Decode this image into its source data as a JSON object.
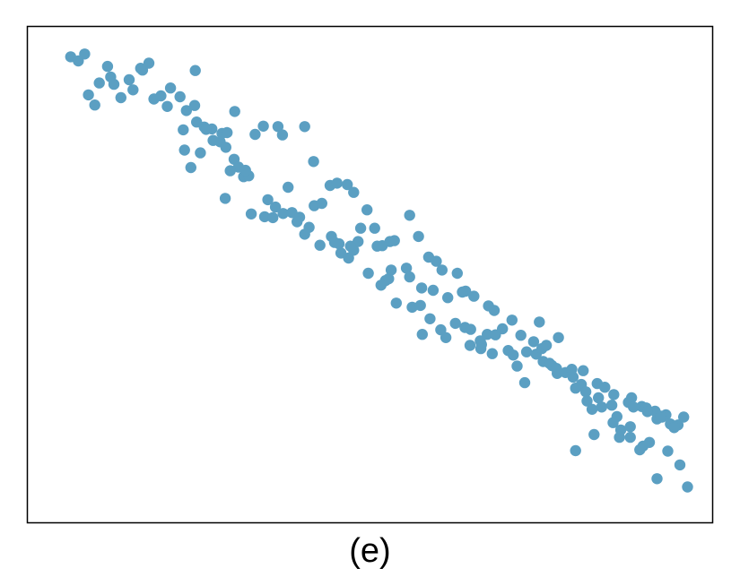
{
  "caption": "(e)",
  "colors": {
    "point": "#5b9fc2",
    "frame": "#000000",
    "background": "#ffffff"
  },
  "chart_data": {
    "type": "scatter",
    "title": "",
    "xlabel": "",
    "ylabel": "",
    "axes_ticks_visible": false,
    "grid": false,
    "legend": "none",
    "xlim": [
      0,
      100
    ],
    "ylim": [
      0,
      100
    ],
    "x": [
      3.0,
      4.2,
      5.2,
      5.8,
      8.8,
      9.8,
      12.8,
      14.3,
      16.1,
      18.2,
      21.2,
      22.5,
      24.0,
      25.2,
      26.5,
      27.4,
      28.7,
      29.4,
      30.2,
      31.0,
      33.5,
      34.8,
      36.4,
      37.8,
      39.0,
      39.8,
      41.3,
      42.5,
      44.0,
      44.5,
      45.5,
      46.7,
      47.5,
      48.2,
      49.8,
      52.5,
      53.0,
      54.2,
      56.7,
      58.0,
      59.5,
      61.2,
      62.0,
      63.5,
      65.0,
      65.8,
      67.4,
      68.5,
      69.8,
      71.8,
      72.6,
      74.7,
      76.2,
      77.3,
      78.7,
      79.5,
      80.8,
      83.3,
      84.2,
      85.0,
      86.5,
      88.1,
      88.9,
      91.2,
      92.8,
      93.5,
      94.9,
      96.0,
      96.6,
      97.3,
      98.5,
      99.4,
      6.8,
      7.5,
      9.3,
      10.9,
      12.2,
      14.0,
      15.3,
      17.2,
      18.7,
      20.2,
      22.6,
      20.7,
      22.8,
      24.3,
      25.4,
      26.8,
      27.6,
      28.8,
      32.0,
      33.3,
      35.6,
      36.3,
      39.8,
      41.2,
      43.8,
      44.9,
      46.5,
      47.5,
      49.6,
      50.8,
      52.0,
      53.2,
      53.9,
      56.3,
      57.7,
      59.3,
      60.5,
      61.4,
      63.8,
      65.1,
      66.4,
      68.7,
      69.6,
      72.4,
      73.8,
      75.8,
      77.1,
      78.3,
      79.4,
      82.0,
      83.6,
      85.8,
      87.0,
      88.4,
      90.7,
      91.5,
      93.7,
      95.2,
      97.9,
      20.9,
      21.9,
      23.4,
      27.3,
      28.1,
      30.5,
      31.4,
      34.0,
      35.2,
      37.2,
      38.6,
      40.5,
      42.2,
      45.2,
      47.0,
      48.6,
      51.2,
      51.8,
      53.4,
      55.8,
      56.3,
      58.2,
      60.0,
      62.3,
      64.6,
      65.9,
      67.6,
      69.3,
      70.9,
      73.2,
      74.4,
      76.7,
      77.8,
      79.7,
      81.8,
      82.4,
      84.0,
      85.3,
      86.0,
      88.3,
      89.5,
      91.0,
      93.0
    ],
    "y": [
      97.3,
      96.4,
      97.9,
      89.0,
      95.2,
      91.3,
      90.1,
      94.4,
      88.1,
      86.5,
      85.6,
      86.7,
      82.0,
      81.6,
      78.8,
      77.6,
      75.0,
      73.3,
      71.2,
      71.4,
      62.5,
      62.3,
      63.2,
      63.4,
      62.4,
      58.7,
      64.9,
      65.4,
      58.2,
      56.9,
      54.6,
      53.5,
      55.2,
      57.1,
      50.2,
      48.6,
      49.0,
      43.7,
      42.8,
      43.2,
      40.3,
      37.9,
      36.2,
      39.3,
      38.4,
      34.5,
      35.5,
      36.9,
      36.8,
      33.4,
      32.4,
      33.1,
      32.6,
      31.0,
      30.1,
      28.4,
      28.6,
      26.0,
      22.4,
      20.6,
      21.1,
      21.5,
      19.0,
      23.1,
      21.2,
      20.9,
      20.2,
      18.9,
      19.4,
      17.4,
      17.2,
      18.9,
      86.8,
      91.6,
      92.9,
      88.4,
      92.3,
      94.8,
      95.9,
      88.8,
      90.5,
      88.6,
      94.3,
      81.4,
      83.1,
      81.5,
      79.1,
      80.6,
      80.8,
      85.4,
      80.4,
      82.2,
      82.1,
      80.3,
      82.1,
      74.5,
      69.3,
      69.8,
      69.5,
      67.8,
      64.0,
      60.0,
      56.2,
      57.1,
      57.3,
      62.8,
      58.2,
      53.7,
      52.8,
      50.9,
      50.2,
      46.3,
      45.2,
      43.1,
      42.1,
      40.0,
      36.7,
      35.3,
      33.8,
      30.6,
      29.5,
      27.6,
      29.0,
      26.2,
      25.4,
      23.8,
      22.1,
      21.1,
      20.1,
      18.5,
      16.6,
      77.0,
      73.2,
      76.4,
      66.5,
      72.5,
      72.6,
      63.1,
      66.2,
      64.6,
      68.9,
      61.4,
      60.2,
      56.3,
      56.6,
      56.1,
      60.0,
      56.1,
      47.6,
      50.9,
      51.3,
      49.4,
      47.0,
      46.5,
      44.9,
      46.1,
      38.0,
      34.7,
      32.7,
      38.1,
      30.0,
      26.4,
      39.6,
      34.5,
      36.2,
      29.3,
      25.2,
      24.4,
      15.1,
      23.1,
      17.7,
      16.1,
      14.5,
      12.6
    ],
    "extra_points": {
      "x": [
        58.3,
        67.5,
        82.4,
        95.8,
        89.3,
        91.0,
        92.5,
        94.0,
        95.2,
        96.9,
        98.8,
        100.0
      ],
      "y": [
        36.9,
        33.8,
        11.6,
        19.1,
        14.5,
        16.8,
        11.8,
        13.4,
        5.5,
        11.5,
        8.5,
        3.7
      ]
    }
  }
}
